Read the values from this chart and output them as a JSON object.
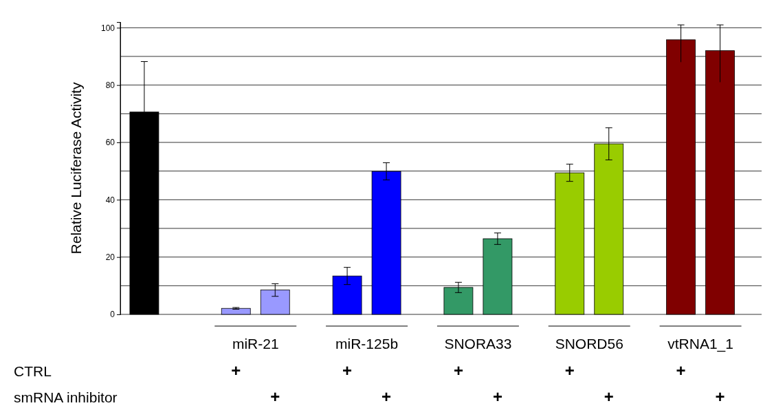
{
  "chart_data": {
    "type": "bar",
    "ylabel": "Relative Luciferase Activity",
    "categories": [
      null,
      "miR-21",
      "miR-125b",
      "SNORA33",
      "SNORD56",
      "vtRNA1_1"
    ],
    "series": [
      {
        "colors": [
          "#000000",
          "#9999ff",
          "#0000ff",
          "#339966",
          "#99cc00",
          "#800000"
        ],
        "values": [
          70.6,
          2.1,
          13.4,
          9.4,
          49.4,
          95.8
        ],
        "errors": [
          [
            70.6,
            88.2
          ],
          0.3,
          3,
          1.8,
          3,
          [
            88,
            101
          ]
        ],
        "value_labels": [
          null,
          "+",
          "+",
          "+",
          "+",
          "+"
        ]
      },
      {
        "colors": [
          null,
          "#9999ff",
          "#0000ff",
          "#339966",
          "#99cc00",
          "#800000"
        ],
        "values": [
          null,
          8.5,
          49.9,
          26.4,
          59.5,
          92
        ],
        "errors": [
          null,
          2.2,
          3,
          2,
          5.6,
          [
            81,
            101
          ]
        ],
        "value_labels": [
          null,
          "+",
          "+",
          "+",
          "+",
          "+"
        ]
      }
    ],
    "annotations": [
      "CTRL",
      "smRNA inhibitor"
    ],
    "ylim": [
      0,
      102
    ],
    "yticks": [
      0,
      {
        "value": 10,
        "label": null
      },
      20,
      {
        "value": 30,
        "label": null
      },
      40,
      {
        "value": 50,
        "label": null
      },
      60,
      {
        "value": 70,
        "label": null
      },
      80,
      {
        "value": 90,
        "label": null
      },
      100
    ],
    "grid": "y"
  }
}
